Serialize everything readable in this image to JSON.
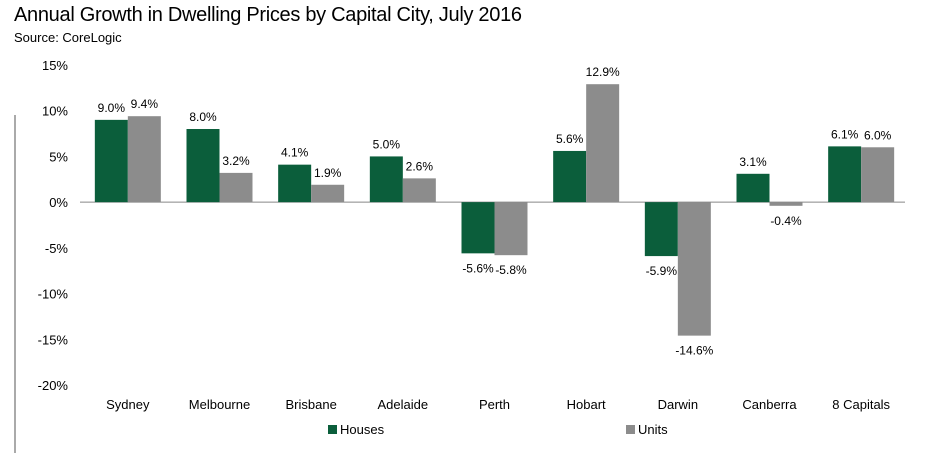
{
  "chart_data": {
    "type": "bar",
    "title": "Annual Growth in Dwelling Prices by Capital City, July 2016",
    "subtitle": "Source: CoreLogic",
    "categories": [
      "Sydney",
      "Melbourne",
      "Brisbane",
      "Adelaide",
      "Perth",
      "Hobart",
      "Darwin",
      "Canberra",
      "8 Capitals"
    ],
    "series": [
      {
        "name": "Houses",
        "color": "#0b5e3b",
        "values": [
          9.0,
          8.0,
          4.1,
          5.0,
          -5.6,
          5.6,
          -5.9,
          3.1,
          6.1
        ],
        "labels": [
          "9.0%",
          "8.0%",
          "4.1%",
          "5.0%",
          "-5.6%",
          "5.6%",
          "-5.9%",
          "3.1%",
          "6.1%"
        ]
      },
      {
        "name": "Units",
        "color": "#8c8c8c",
        "values": [
          9.4,
          3.2,
          1.9,
          2.6,
          -5.8,
          12.9,
          -14.6,
          -0.4,
          6.0
        ],
        "labels": [
          "9.4%",
          "3.2%",
          "1.9%",
          "2.6%",
          "-5.8%",
          "12.9%",
          "-14.6%",
          "-0.4%",
          "6.0%"
        ]
      }
    ],
    "yticks": [
      15,
      10,
      5,
      0,
      -5,
      -10,
      -15,
      -20
    ],
    "ytick_labels": [
      "15%",
      "10%",
      "5%",
      "0%",
      "-5%",
      "-10%",
      "-15%",
      "-20%"
    ],
    "ylim": [
      -20,
      15
    ],
    "xlabel": "",
    "ylabel": "",
    "grid": false,
    "legend_position": "bottom"
  }
}
